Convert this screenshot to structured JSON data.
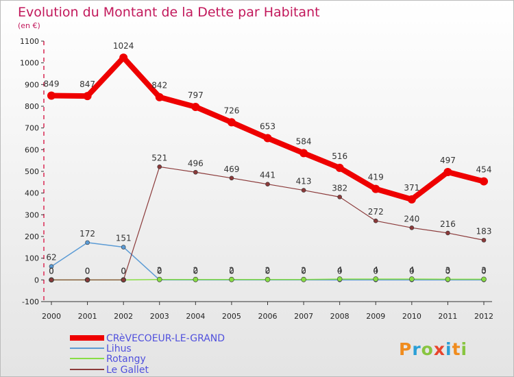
{
  "chart_data": {
    "type": "line",
    "title": "Evolution du Montant de la Dette par Habitant",
    "subtitle": "(en €)",
    "xlabel": "",
    "ylabel": "",
    "ylim": [
      -100,
      1100
    ],
    "yticks": [
      -100,
      0,
      100,
      200,
      300,
      400,
      500,
      600,
      700,
      800,
      900,
      1000,
      1100
    ],
    "ytick_labels": [
      "-100",
      "0",
      "100",
      "200",
      "300",
      "400",
      "500",
      "600",
      "700",
      "800",
      "900",
      "1000",
      "1100"
    ],
    "categories": [
      "2000",
      "2001",
      "2002",
      "2003",
      "2004",
      "2005",
      "2006",
      "2007",
      "2008",
      "2009",
      "2010",
      "2011",
      "2012"
    ],
    "series": [
      {
        "name": "CRèVECOEUR-LE-GRAND",
        "color": "#ee0000",
        "values": [
          849,
          847,
          1024,
          842,
          797,
          726,
          653,
          584,
          516,
          419,
          371,
          497,
          454
        ],
        "labels": [
          "849",
          "847",
          "1024",
          "842",
          "797",
          "726",
          "653",
          "584",
          "516",
          "419",
          "371",
          "497",
          "454"
        ]
      },
      {
        "name": "Lihus",
        "color": "#5b9bd5",
        "values": [
          62,
          172,
          151,
          0,
          0,
          0,
          0,
          0,
          0,
          0,
          0,
          0,
          0
        ],
        "labels": [
          "62",
          "172",
          "151",
          "0",
          "0",
          "0",
          "0",
          "0",
          "0",
          "0",
          "0",
          "0",
          "0"
        ]
      },
      {
        "name": "Rotangy",
        "color": "#88dd44",
        "values": [
          0,
          0,
          0,
          2,
          2,
          2,
          2,
          2,
          4,
          4,
          4,
          3,
          3
        ],
        "labels": [
          "0",
          "0",
          "0",
          "2",
          "2",
          "2",
          "2",
          "2",
          "4",
          "4",
          "4",
          "3",
          "3"
        ]
      },
      {
        "name": "Le Gallet",
        "color": "#8b3a3a",
        "values": [
          0,
          0,
          0,
          521,
          496,
          469,
          441,
          413,
          382,
          272,
          240,
          216,
          183
        ],
        "labels": [
          "0",
          "0",
          "0",
          "521",
          "496",
          "469",
          "441",
          "413",
          "382",
          "272",
          "240",
          "216",
          "183"
        ]
      }
    ],
    "legend_position": "bottom-left",
    "grid": false
  },
  "brand": {
    "logo_text": "Proxiti"
  }
}
